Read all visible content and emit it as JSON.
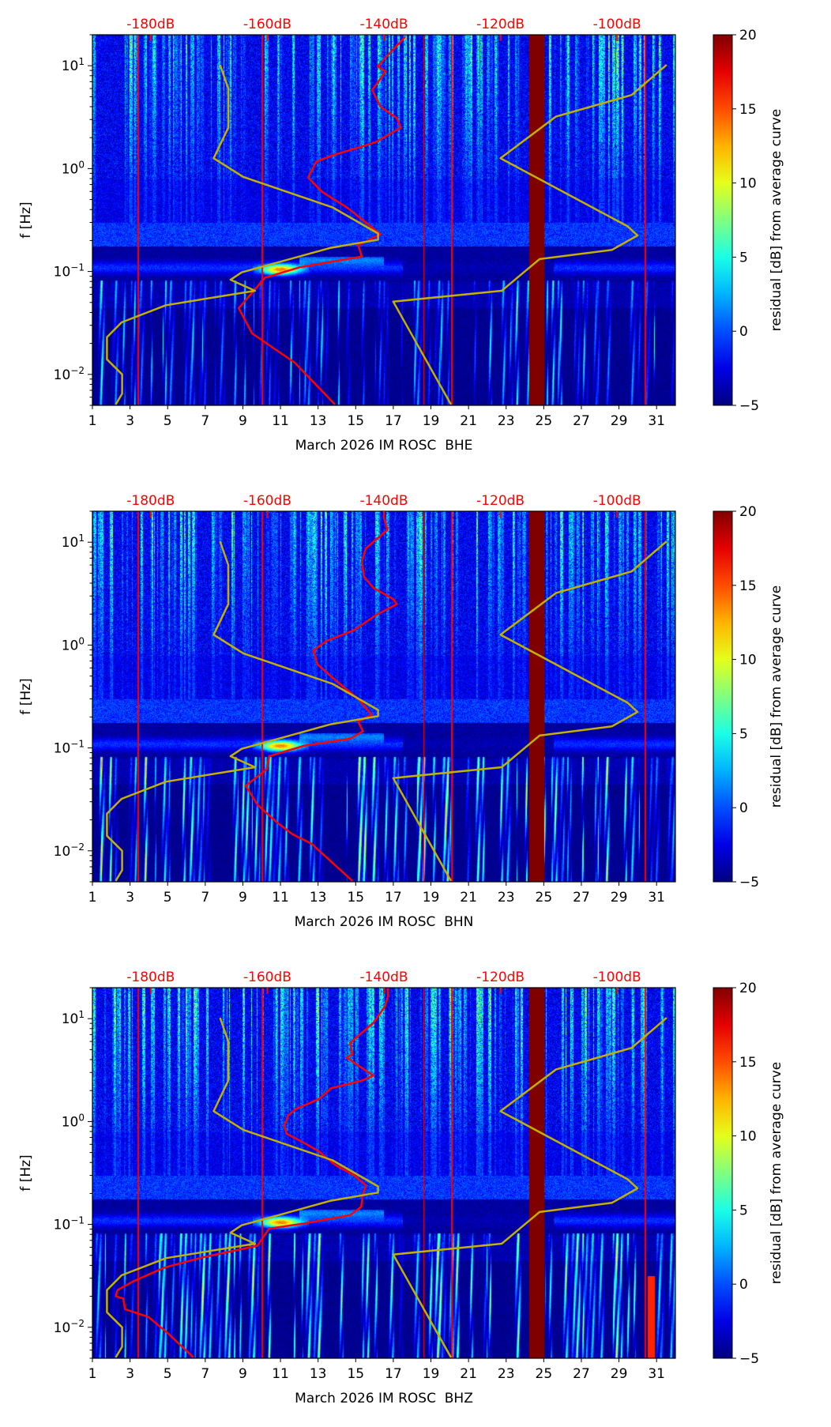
{
  "colors": {
    "psd": "#ff0000",
    "noise_model": "#c4b000",
    "top_labels": "#ff0000",
    "gap": "#7f0000"
  },
  "chart_data": [
    {
      "type": "heatmap",
      "xlabel": "March 2026 IM ROSC  BHE",
      "ylabel": "f [Hz]",
      "xlim": [
        1,
        32
      ],
      "ylim": [
        0.005,
        20
      ],
      "yscale": "log",
      "xticks": [
        "1",
        "3",
        "5",
        "7",
        "9",
        "11",
        "13",
        "15",
        "17",
        "19",
        "21",
        "23",
        "25",
        "27",
        "29",
        "31"
      ],
      "yticks": [
        0.01,
        0.1,
        1,
        10
      ],
      "ytick_base": "10",
      "ytick_exponents": [
        "−2",
        "−1",
        "0",
        "1"
      ],
      "top_axis": {
        "xlim": [
          -190,
          -90
        ],
        "ticks": [
          -180,
          -160,
          -140,
          -120,
          -100
        ],
        "tick_labels": [
          "-180dB",
          "-160dB",
          "-140dB",
          "-120dB",
          "-100dB"
        ]
      },
      "colorbar": {
        "label": "residual [dB] from average curve",
        "range": [
          -5,
          20
        ],
        "ticks": [
          "−5",
          "0",
          "5",
          "10",
          "15",
          "20"
        ]
      },
      "data_gap_days": [
        24.2,
        25.0
      ],
      "series": [
        {
          "name": "station PSD",
          "units": "dB vs Hz",
          "points": [
            [
              -136.4,
              19
            ],
            [
              -141.1,
              9.9
            ],
            [
              -139.7,
              8.8
            ],
            [
              -142.0,
              5.8
            ],
            [
              -140.6,
              4.0
            ],
            [
              -137.8,
              3.1
            ],
            [
              -137.1,
              2.5
            ],
            [
              -141.5,
              1.8
            ],
            [
              -148.9,
              1.34
            ],
            [
              -151.6,
              1.17
            ],
            [
              -153.0,
              0.82
            ],
            [
              -150.7,
              0.6
            ],
            [
              -146.1,
              0.41
            ],
            [
              -140.6,
              0.23
            ],
            [
              -144.4,
              0.18
            ],
            [
              -143.8,
              0.14
            ],
            [
              -154.4,
              0.11
            ],
            [
              -160.4,
              0.087
            ],
            [
              -164.9,
              0.044
            ],
            [
              -162.6,
              0.025
            ],
            [
              -155.3,
              0.013
            ],
            [
              -148.4,
              0.0051
            ]
          ]
        },
        {
          "name": "NLNM",
          "points": [
            [
              -168.1,
              10.2
            ],
            [
              -166.7,
              6.0
            ],
            [
              -166.7,
              2.5
            ],
            [
              -169.2,
              1.26
            ],
            [
              -164.1,
              0.83
            ],
            [
              -148.8,
              0.42
            ],
            [
              -141.0,
              0.234
            ],
            [
              -141.0,
              0.204
            ],
            [
              -149.1,
              0.17
            ],
            [
              -164.4,
              0.098
            ],
            [
              -166.3,
              0.083
            ],
            [
              -162.1,
              0.065
            ],
            [
              -177.4,
              0.047
            ],
            [
              -185.0,
              0.032
            ],
            [
              -187.5,
              0.023
            ],
            [
              -187.5,
              0.014
            ],
            [
              -184.9,
              0.01
            ],
            [
              -184.9,
              0.0065
            ],
            [
              -186.0,
              0.0051
            ]
          ]
        },
        {
          "name": "NHNM",
          "points": [
            [
              -91.5,
              10.2
            ],
            [
              -97.5,
              5.2
            ],
            [
              -110.5,
              3.2
            ],
            [
              -120.0,
              1.26
            ],
            [
              -98.2,
              0.275
            ],
            [
              -96.5,
              0.224
            ],
            [
              -100.9,
              0.162
            ],
            [
              -113.3,
              0.132
            ],
            [
              -119.8,
              0.065
            ],
            [
              -138.4,
              0.051
            ],
            [
              -128.5,
              0.0051
            ]
          ]
        }
      ]
    },
    {
      "type": "heatmap",
      "xlabel": "March 2026 IM ROSC  BHN",
      "ylabel": "f [Hz]",
      "xlim": [
        1,
        32
      ],
      "ylim": [
        0.005,
        20
      ],
      "yscale": "log",
      "xticks": [
        "1",
        "3",
        "5",
        "7",
        "9",
        "11",
        "13",
        "15",
        "17",
        "19",
        "21",
        "23",
        "25",
        "27",
        "29",
        "31"
      ],
      "yticks": [
        0.01,
        0.1,
        1,
        10
      ],
      "ytick_base": "10",
      "ytick_exponents": [
        "−2",
        "−1",
        "0",
        "1"
      ],
      "top_axis": {
        "xlim": [
          -190,
          -90
        ],
        "ticks": [
          -180,
          -160,
          -140,
          -120,
          -100
        ],
        "tick_labels": [
          "-180dB",
          "-160dB",
          "-140dB",
          "-120dB",
          "-100dB"
        ]
      },
      "colorbar": {
        "label": "residual [dB] from average curve",
        "range": [
          -5,
          20
        ],
        "ticks": [
          "−5",
          "0",
          "5",
          "10",
          "15",
          "20"
        ]
      },
      "data_gap_days": [
        24.2,
        25.0
      ],
      "series": [
        {
          "name": "station PSD",
          "units": "dB vs Hz",
          "points": [
            [
              -140.1,
              18.2
            ],
            [
              -139.4,
              13.2
            ],
            [
              -143.1,
              8.7
            ],
            [
              -143.8,
              6.5
            ],
            [
              -143.4,
              4.6
            ],
            [
              -141.8,
              3.6
            ],
            [
              -138.4,
              2.8
            ],
            [
              -137.8,
              2.5
            ],
            [
              -141.4,
              1.95
            ],
            [
              -145.1,
              1.4
            ],
            [
              -149.8,
              1.1
            ],
            [
              -152.1,
              0.89
            ],
            [
              -151.4,
              0.65
            ],
            [
              -147.8,
              0.43
            ],
            [
              -144.4,
              0.3
            ],
            [
              -142.1,
              0.21
            ],
            [
              -144.4,
              0.18
            ],
            [
              -143.6,
              0.145
            ],
            [
              -145.8,
              0.123
            ],
            [
              -153.7,
              0.105
            ],
            [
              -159.7,
              0.083
            ],
            [
              -160.1,
              0.062
            ],
            [
              -163.7,
              0.043
            ],
            [
              -161.7,
              0.028
            ],
            [
              -158.4,
              0.019
            ],
            [
              -155.7,
              0.0145
            ],
            [
              -152.4,
              0.0117
            ],
            [
              -145.4,
              0.0051
            ]
          ]
        },
        {
          "name": "NLNM",
          "points": [
            [
              -168.1,
              10.2
            ],
            [
              -166.7,
              6.0
            ],
            [
              -166.7,
              2.5
            ],
            [
              -169.2,
              1.26
            ],
            [
              -164.1,
              0.83
            ],
            [
              -148.8,
              0.42
            ],
            [
              -141.0,
              0.234
            ],
            [
              -141.0,
              0.204
            ],
            [
              -149.1,
              0.17
            ],
            [
              -164.4,
              0.098
            ],
            [
              -166.3,
              0.083
            ],
            [
              -162.1,
              0.065
            ],
            [
              -177.4,
              0.047
            ],
            [
              -185.0,
              0.032
            ],
            [
              -187.5,
              0.023
            ],
            [
              -187.5,
              0.014
            ],
            [
              -184.9,
              0.01
            ],
            [
              -184.9,
              0.0065
            ],
            [
              -186.0,
              0.0051
            ]
          ]
        },
        {
          "name": "NHNM",
          "points": [
            [
              -91.5,
              10.2
            ],
            [
              -97.5,
              5.2
            ],
            [
              -110.5,
              3.2
            ],
            [
              -120.0,
              1.26
            ],
            [
              -98.2,
              0.275
            ],
            [
              -96.5,
              0.224
            ],
            [
              -100.9,
              0.162
            ],
            [
              -113.3,
              0.132
            ],
            [
              -119.8,
              0.065
            ],
            [
              -138.4,
              0.051
            ],
            [
              -128.5,
              0.0051
            ]
          ]
        }
      ]
    },
    {
      "type": "heatmap",
      "xlabel": "March 2026 IM ROSC  BHZ",
      "ylabel": "f [Hz]",
      "xlim": [
        1,
        32
      ],
      "ylim": [
        0.005,
        20
      ],
      "yscale": "log",
      "xticks": [
        "1",
        "3",
        "5",
        "7",
        "9",
        "11",
        "13",
        "15",
        "17",
        "19",
        "21",
        "23",
        "25",
        "27",
        "29",
        "31"
      ],
      "yticks": [
        0.01,
        0.1,
        1,
        10
      ],
      "ytick_base": "10",
      "ytick_exponents": [
        "−2",
        "−1",
        "0",
        "1"
      ],
      "top_axis": {
        "xlim": [
          -190,
          -90
        ],
        "ticks": [
          -180,
          -160,
          -140,
          -120,
          -100
        ],
        "tick_labels": [
          "-180dB",
          "-160dB",
          "-140dB",
          "-120dB",
          "-100dB"
        ]
      },
      "colorbar": {
        "label": "residual [dB] from average curve",
        "range": [
          -5,
          20
        ],
        "ticks": [
          "−5",
          "0",
          "5",
          "10",
          "15",
          "20"
        ]
      },
      "data_gap_days": [
        24.2,
        25.0
      ],
      "series": [
        {
          "name": "station PSD",
          "units": "dB vs Hz",
          "points": [
            [
              -139.3,
              20
            ],
            [
              -139.3,
              16.6
            ],
            [
              -139.8,
              13.2
            ],
            [
              -141.8,
              9.1
            ],
            [
              -144.4,
              6.8
            ],
            [
              -145.8,
              5.8
            ],
            [
              -145.4,
              4.5
            ],
            [
              -146.4,
              4.2
            ],
            [
              -144.4,
              3.5
            ],
            [
              -141.8,
              2.8
            ],
            [
              -143.8,
              2.5
            ],
            [
              -149.1,
              2.1
            ],
            [
              -151.1,
              1.66
            ],
            [
              -155.1,
              1.32
            ],
            [
              -156.4,
              1.15
            ],
            [
              -157.1,
              0.91
            ],
            [
              -156.7,
              0.76
            ],
            [
              -153.7,
              0.62
            ],
            [
              -151.1,
              0.51
            ],
            [
              -148.4,
              0.38
            ],
            [
              -145.1,
              0.3
            ],
            [
              -143.1,
              0.24
            ],
            [
              -143.6,
              0.195
            ],
            [
              -143.9,
              0.148
            ],
            [
              -145.8,
              0.123
            ],
            [
              -153.7,
              0.102
            ],
            [
              -159.7,
              0.091
            ],
            [
              -161.7,
              0.062
            ],
            [
              -171.0,
              0.048
            ],
            [
              -177.7,
              0.038
            ],
            [
              -183.0,
              0.028
            ],
            [
              -185.7,
              0.023
            ],
            [
              -186.0,
              0.02
            ],
            [
              -184.7,
              0.019
            ],
            [
              -184.4,
              0.015
            ],
            [
              -180.4,
              0.0126
            ],
            [
              -177.0,
              0.0087
            ],
            [
              -172.7,
              0.0051
            ]
          ]
        },
        {
          "name": "NLNM",
          "points": [
            [
              -168.1,
              10.2
            ],
            [
              -166.7,
              6.0
            ],
            [
              -166.7,
              2.5
            ],
            [
              -169.2,
              1.26
            ],
            [
              -164.1,
              0.83
            ],
            [
              -148.8,
              0.42
            ],
            [
              -141.0,
              0.234
            ],
            [
              -141.0,
              0.204
            ],
            [
              -149.1,
              0.17
            ],
            [
              -164.4,
              0.098
            ],
            [
              -166.3,
              0.083
            ],
            [
              -162.1,
              0.065
            ],
            [
              -177.4,
              0.047
            ],
            [
              -185.0,
              0.032
            ],
            [
              -187.5,
              0.023
            ],
            [
              -187.5,
              0.014
            ],
            [
              -184.9,
              0.01
            ],
            [
              -184.9,
              0.0065
            ],
            [
              -186.0,
              0.0051
            ]
          ]
        },
        {
          "name": "NHNM",
          "points": [
            [
              -91.5,
              10.2
            ],
            [
              -97.5,
              5.2
            ],
            [
              -110.5,
              3.2
            ],
            [
              -120.0,
              1.26
            ],
            [
              -98.2,
              0.275
            ],
            [
              -96.5,
              0.224
            ],
            [
              -100.9,
              0.162
            ],
            [
              -113.3,
              0.132
            ],
            [
              -119.8,
              0.065
            ],
            [
              -138.4,
              0.051
            ],
            [
              -128.5,
              0.0051
            ]
          ]
        }
      ]
    }
  ]
}
